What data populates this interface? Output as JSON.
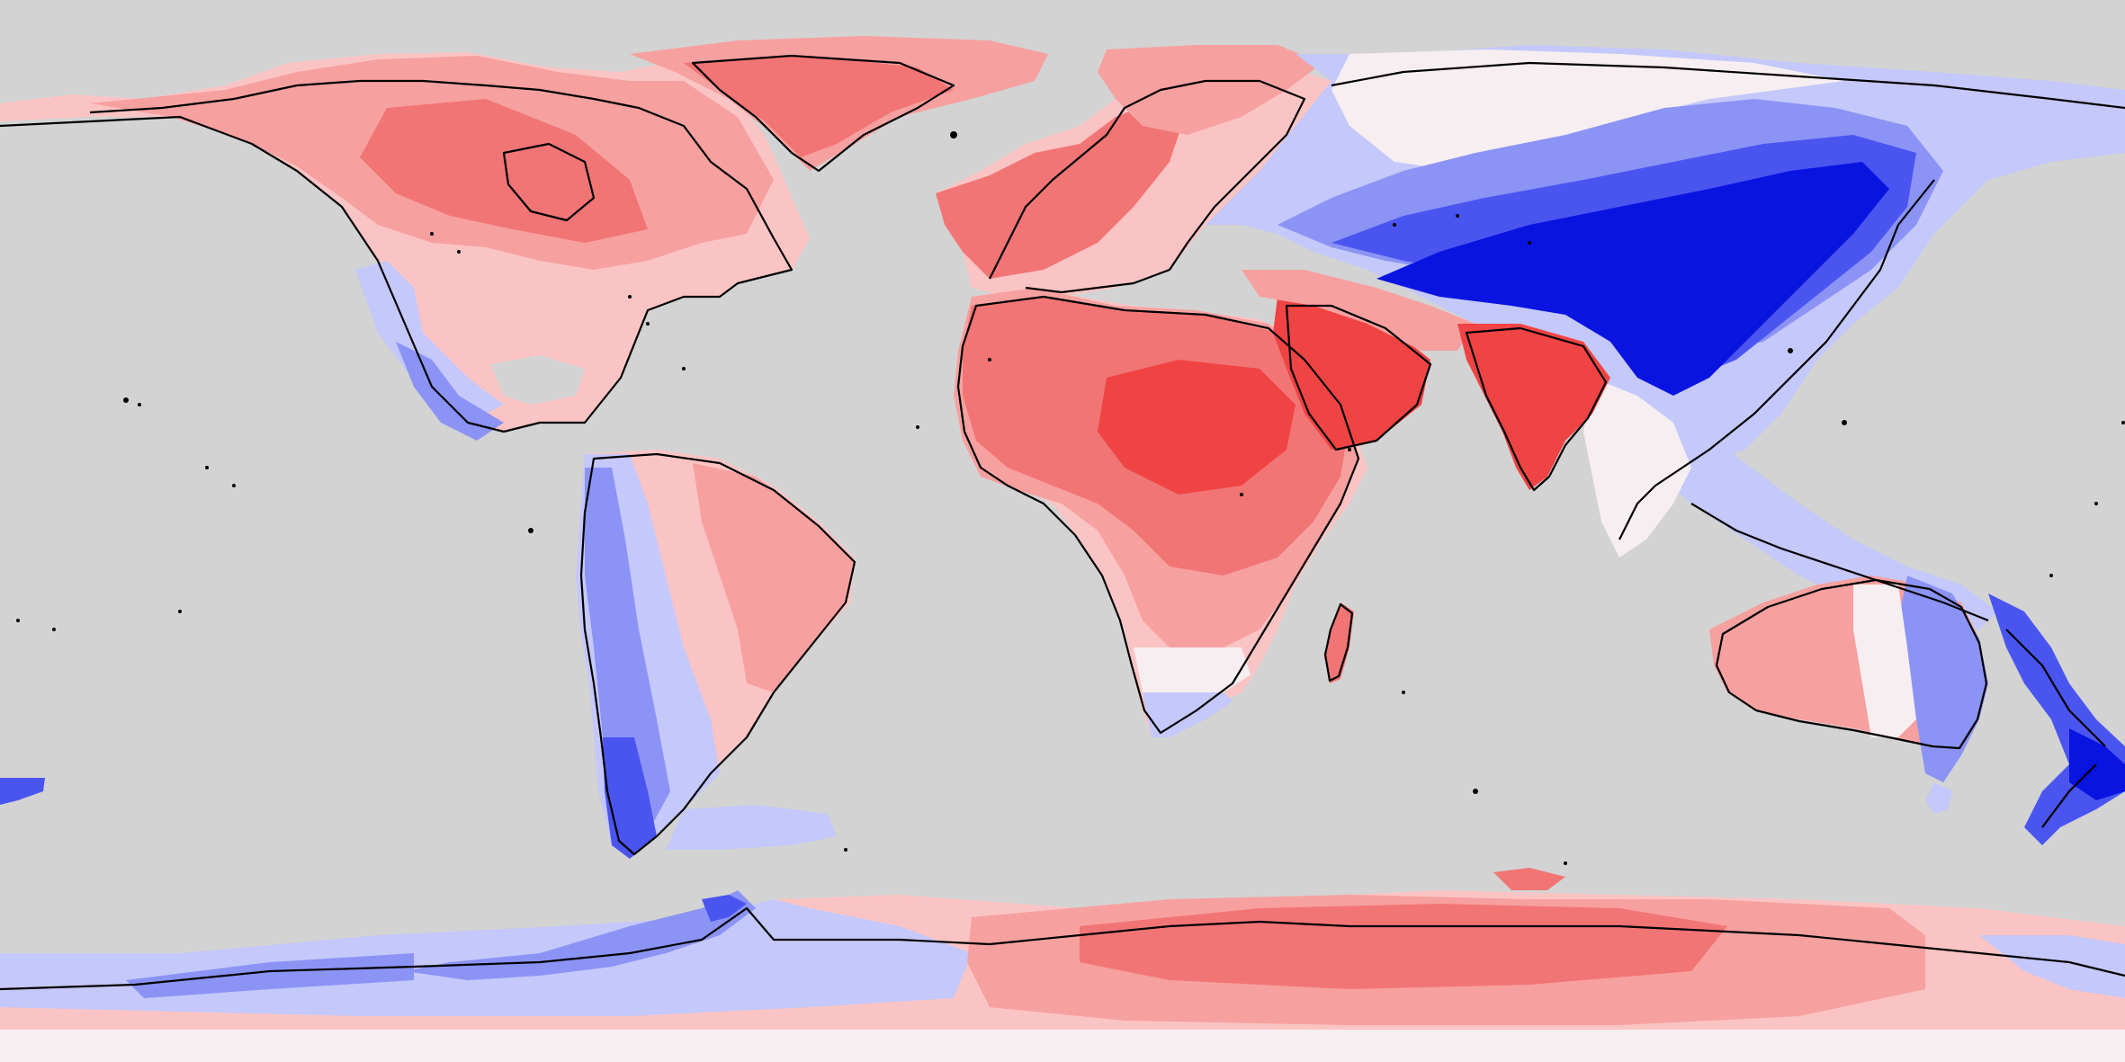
{
  "map": {
    "projection": "equirectangular",
    "ocean_color": "#d3d3d3",
    "coastline_color": "#000000",
    "diverging_palette": {
      "strong_negative": "#0a14e0",
      "negative": "#4a55f0",
      "mild_negative": "#8b93f5",
      "weak_negative": "#c4c8fa",
      "neutral": "#f6eef0",
      "weak_positive": "#fbc4c4",
      "mild_positive": "#f7a0a0",
      "positive": "#f27575",
      "strong_positive": "#f04444"
    },
    "land_anomaly": {
      "north_america_canada": "positive",
      "greenland": "positive",
      "us_west_mexico": "negative",
      "south_america_west": "negative",
      "south_america_east": "positive",
      "europe_africa": "positive",
      "arabia_india": "strong_positive",
      "central_asia_china": "strong_negative",
      "southeast_asia": "weak_negative",
      "australia_west": "positive",
      "australia_east_nz": "negative",
      "antarctica_west": "negative",
      "antarctica_east": "positive"
    }
  }
}
